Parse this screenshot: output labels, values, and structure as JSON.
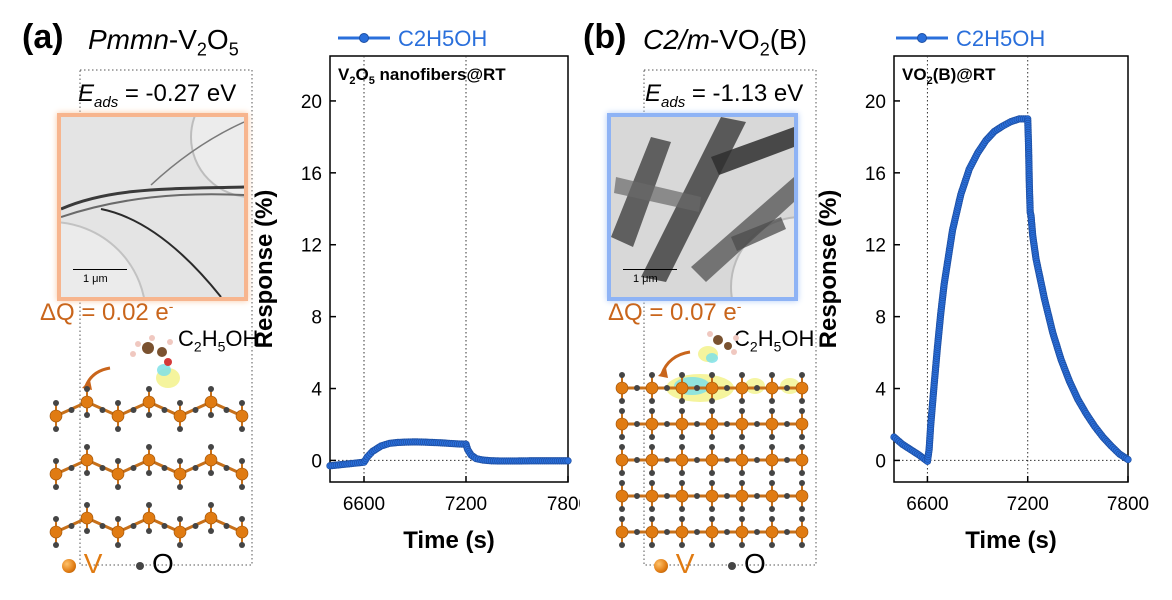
{
  "colors": {
    "series": "#2a6fdb",
    "vanadium": "#e07b12",
    "oxygen": "#454545",
    "charge_label": "#c9651b",
    "tem_border_a": "#f7b58e",
    "tem_border_b": "#8eb3f5"
  },
  "panel_a": {
    "letter": "(a)",
    "phase_italic": "Pmmn",
    "phase_rest": "-V",
    "phase_sub1": "2",
    "phase_o": "O",
    "phase_sub2": "5",
    "eads_symbol": "E",
    "eads_sub": "ads",
    "eads_value": " = -0.27 eV",
    "dq_text": "ΔQ = 0.02 e",
    "dq_sup": "-",
    "scale_label": "1 μm"
  },
  "panel_b": {
    "letter": "(b)",
    "phase_italic": "C2/m",
    "phase_rest": "-VO",
    "phase_sub1": "2",
    "phase_tail": "(B)",
    "eads_symbol": "E",
    "eads_sub": "ads",
    "eads_value": " = -1.13 eV",
    "dq_text": "ΔQ = 0.07 e",
    "dq_sup": "-",
    "scale_label": "1 μm"
  },
  "molecule": {
    "c": "C",
    "s1": "2",
    "h": "H",
    "s2": "5",
    "tail": "OH"
  },
  "atom_legend": {
    "v": "V",
    "o": "O"
  },
  "chart_data": [
    {
      "type": "line",
      "title": "V2O5 nanofibers@RT",
      "xlabel": "Time (s)",
      "ylabel": "Response (%)",
      "xlim": [
        6400,
        7800
      ],
      "ylim": [
        -1.2,
        22.5
      ],
      "xticks": [
        6600,
        7200,
        7800
      ],
      "yticks": [
        0,
        4,
        8,
        12,
        16,
        20
      ],
      "vlines": [
        6600,
        7200
      ],
      "hline": 0,
      "legend": "top",
      "series": [
        {
          "name": "C2H5OH",
          "x": [
            6400,
            6450,
            6500,
            6550,
            6600,
            6620,
            6650,
            6700,
            6750,
            6800,
            6850,
            6900,
            6950,
            7000,
            7050,
            7100,
            7150,
            7200,
            7210,
            7230,
            7260,
            7300,
            7350,
            7400,
            7450,
            7500,
            7600,
            7700,
            7800
          ],
          "y": [
            -0.3,
            -0.25,
            -0.2,
            -0.15,
            -0.1,
            0.2,
            0.5,
            0.8,
            0.95,
            1.0,
            1.02,
            1.03,
            1.02,
            1.0,
            0.98,
            0.95,
            0.92,
            0.9,
            0.6,
            0.3,
            0.1,
            0.02,
            -0.02,
            -0.03,
            -0.03,
            -0.03,
            -0.02,
            -0.02,
            -0.02
          ]
        }
      ]
    },
    {
      "type": "line",
      "title": "VO2(B)@RT",
      "xlabel": "Time (s)",
      "ylabel": "Response (%)",
      "xlim": [
        6400,
        7800
      ],
      "ylim": [
        -1.2,
        22.5
      ],
      "xticks": [
        6600,
        7200,
        7800
      ],
      "yticks": [
        0,
        4,
        8,
        12,
        16,
        20
      ],
      "vlines": [
        6600,
        7200
      ],
      "hline": 0,
      "legend": "top",
      "series": [
        {
          "name": "C2H5OH",
          "x": [
            6400,
            6450,
            6500,
            6550,
            6600,
            6610,
            6620,
            6640,
            6660,
            6680,
            6700,
            6750,
            6800,
            6850,
            6900,
            6950,
            7000,
            7050,
            7100,
            7150,
            7200,
            7205,
            7210,
            7215,
            7220,
            7230,
            7250,
            7300,
            7350,
            7400,
            7450,
            7500,
            7550,
            7600,
            7650,
            7700,
            7750,
            7800
          ],
          "y": [
            1.3,
            0.9,
            0.6,
            0.3,
            -0.05,
            0.6,
            2.0,
            4.2,
            6.3,
            8.2,
            9.8,
            12.8,
            14.8,
            16.2,
            17.1,
            17.8,
            18.3,
            18.6,
            18.85,
            19.0,
            19.0,
            17.5,
            15.2,
            13.8,
            13.6,
            12.5,
            11.2,
            9.0,
            7.1,
            5.6,
            4.4,
            3.4,
            2.6,
            1.9,
            1.3,
            0.8,
            0.35,
            0.05
          ]
        }
      ]
    }
  ]
}
